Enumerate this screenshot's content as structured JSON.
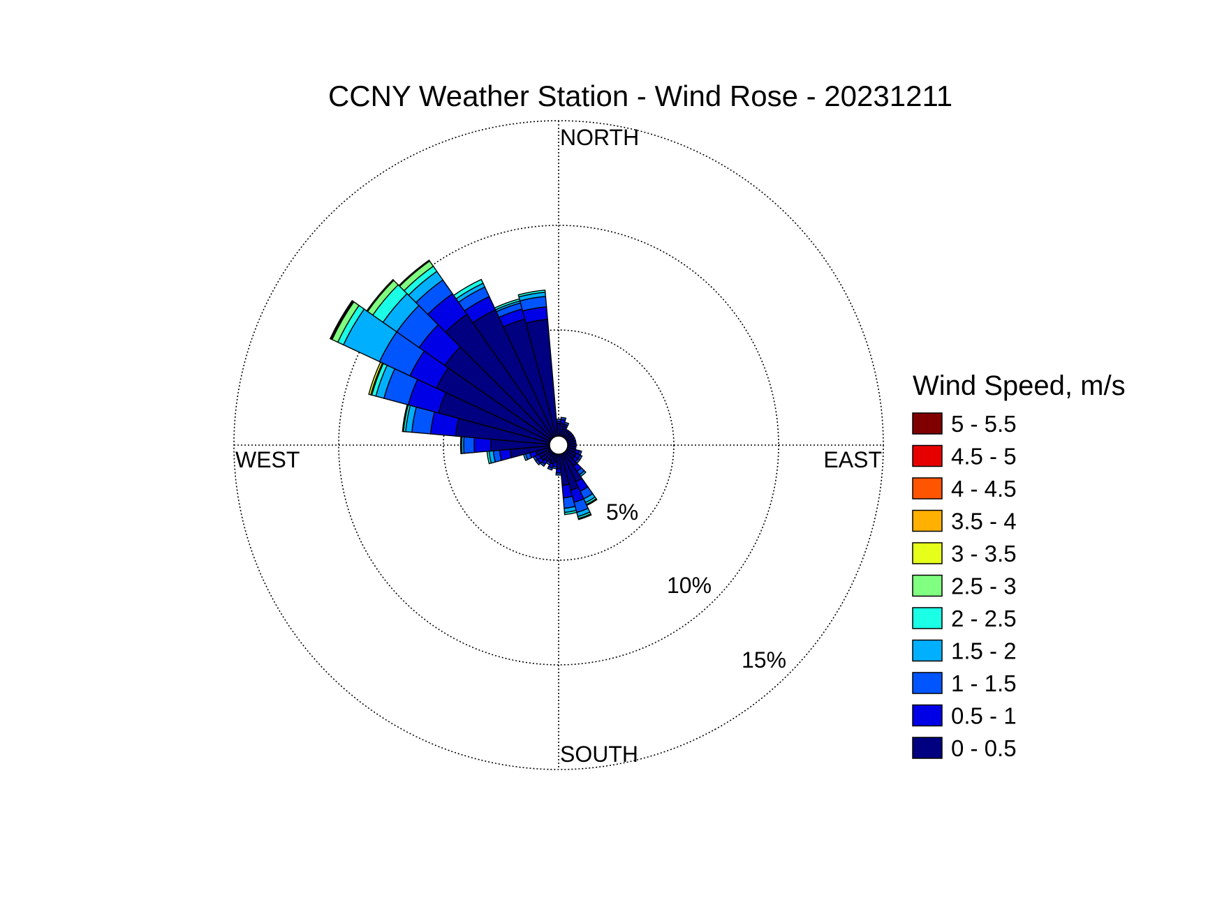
{
  "chart_data": {
    "type": "wind-rose",
    "title": "CCNY Weather Station - Wind Rose - 20231211",
    "compass": {
      "north": "NORTH",
      "east": "EAST",
      "south": "SOUTH",
      "west": "WEST"
    },
    "radial_axis": {
      "unit": "%",
      "max": 15.5,
      "ticks": [
        5,
        10,
        15
      ],
      "tick_labels": [
        "5%",
        "10%",
        "15%"
      ]
    },
    "grid": true,
    "direction_bin_width_deg": 10,
    "legend": {
      "title": "Wind Speed, m/s",
      "placement": "right",
      "entries": [
        {
          "label": "5 - 5.5",
          "color": "#800000"
        },
        {
          "label": "4.5 - 5",
          "color": "#e60000"
        },
        {
          "label": "4 - 4.5",
          "color": "#ff5500"
        },
        {
          "label": "3.5 - 4",
          "color": "#ffb000"
        },
        {
          "label": "3 - 3.5",
          "color": "#e6ff1a"
        },
        {
          "label": "2.5 - 3",
          "color": "#80ff80"
        },
        {
          "label": "2 - 2.5",
          "color": "#1affe6"
        },
        {
          "label": "1.5 - 2",
          "color": "#00b0ff"
        },
        {
          "label": "1 - 1.5",
          "color": "#0055ff"
        },
        {
          "label": "0.5 - 1",
          "color": "#0000e6"
        },
        {
          "label": "0 - 0.5",
          "color": "#000080"
        }
      ]
    },
    "bins_order": [
      "0 - 0.5",
      "0.5 - 1",
      "1 - 1.5",
      "1.5 - 2",
      "2 - 2.5",
      "2.5 - 3",
      "3 - 3.5",
      "3.5 - 4",
      "4 - 4.5",
      "4.5 - 5",
      "5 - 5.5"
    ],
    "sectors": [
      {
        "direction": 0,
        "values": [
          0.6,
          0.1,
          0.1,
          0,
          0,
          0,
          0,
          0,
          0,
          0,
          0
        ]
      },
      {
        "direction": 10,
        "values": [
          0.6,
          0.2,
          0.1,
          0,
          0,
          0,
          0,
          0,
          0,
          0,
          0
        ]
      },
      {
        "direction": 20,
        "values": [
          0.5,
          0.1,
          0.1,
          0,
          0,
          0,
          0,
          0,
          0,
          0,
          0
        ]
      },
      {
        "direction": 30,
        "values": [
          0.3,
          0.1,
          0,
          0,
          0,
          0,
          0,
          0,
          0,
          0,
          0
        ]
      },
      {
        "direction": 40,
        "values": [
          0.3,
          0.1,
          0,
          0,
          0,
          0,
          0,
          0,
          0,
          0,
          0
        ]
      },
      {
        "direction": 50,
        "values": [
          0.3,
          0.1,
          0,
          0,
          0,
          0,
          0,
          0,
          0,
          0,
          0
        ]
      },
      {
        "direction": 60,
        "values": [
          0.3,
          0.1,
          0,
          0,
          0,
          0,
          0,
          0,
          0,
          0,
          0
        ]
      },
      {
        "direction": 70,
        "values": [
          0.3,
          0.1,
          0,
          0,
          0,
          0,
          0,
          0,
          0,
          0,
          0
        ]
      },
      {
        "direction": 80,
        "values": [
          0.3,
          0.1,
          0,
          0,
          0,
          0,
          0,
          0,
          0,
          0,
          0
        ]
      },
      {
        "direction": 90,
        "values": [
          0.3,
          0.1,
          0,
          0,
          0,
          0,
          0,
          0,
          0,
          0,
          0
        ]
      },
      {
        "direction": 100,
        "values": [
          0.3,
          0.1,
          0,
          0,
          0,
          0,
          0,
          0,
          0,
          0,
          0
        ]
      },
      {
        "direction": 110,
        "values": [
          0.4,
          0.2,
          0.1,
          0,
          0,
          0,
          0,
          0,
          0,
          0,
          0
        ]
      },
      {
        "direction": 120,
        "values": [
          0.5,
          0.2,
          0.1,
          0,
          0,
          0,
          0,
          0,
          0,
          0,
          0
        ]
      },
      {
        "direction": 130,
        "values": [
          0.5,
          0.2,
          0.1,
          0,
          0,
          0,
          0,
          0,
          0,
          0,
          0
        ]
      },
      {
        "direction": 140,
        "values": [
          0.8,
          0.3,
          0.2,
          0.1,
          0,
          0,
          0,
          0,
          0,
          0,
          0
        ]
      },
      {
        "direction": 150,
        "values": [
          1.5,
          0.5,
          0.4,
          0.2,
          0.1,
          0.05,
          0,
          0,
          0,
          0,
          0
        ]
      },
      {
        "direction": 160,
        "values": [
          1.8,
          0.6,
          0.5,
          0.2,
          0.1,
          0.05,
          0,
          0,
          0,
          0,
          0
        ]
      },
      {
        "direction": 170,
        "values": [
          1.5,
          0.6,
          0.5,
          0.2,
          0.1,
          0,
          0,
          0,
          0,
          0,
          0
        ]
      },
      {
        "direction": 180,
        "values": [
          0.7,
          0.2,
          0.1,
          0,
          0,
          0,
          0,
          0,
          0,
          0,
          0
        ]
      },
      {
        "direction": 190,
        "values": [
          0.4,
          0.2,
          0.1,
          0,
          0,
          0,
          0,
          0,
          0,
          0,
          0
        ]
      },
      {
        "direction": 200,
        "values": [
          0.5,
          0.2,
          0.1,
          0,
          0,
          0,
          0,
          0,
          0,
          0,
          0
        ]
      },
      {
        "direction": 210,
        "values": [
          0.4,
          0.1,
          0.1,
          0,
          0,
          0,
          0,
          0,
          0,
          0,
          0
        ]
      },
      {
        "direction": 220,
        "values": [
          0.5,
          0.2,
          0.1,
          0,
          0,
          0,
          0,
          0,
          0,
          0,
          0
        ]
      },
      {
        "direction": 230,
        "values": [
          0.6,
          0.2,
          0.1,
          0,
          0,
          0,
          0,
          0,
          0,
          0,
          0
        ]
      },
      {
        "direction": 240,
        "values": [
          0.6,
          0.2,
          0.1,
          0,
          0,
          0,
          0,
          0,
          0,
          0,
          0
        ]
      },
      {
        "direction": 250,
        "values": [
          0.7,
          0.3,
          0.2,
          0.1,
          0,
          0,
          0,
          0,
          0,
          0,
          0
        ]
      },
      {
        "direction": 260,
        "values": [
          1.9,
          0.5,
          0.3,
          0.2,
          0.1,
          0,
          0,
          0,
          0,
          0,
          0
        ]
      },
      {
        "direction": 270,
        "values": [
          2.8,
          0.8,
          0.5,
          0.1,
          0.05,
          0,
          0,
          0,
          0,
          0,
          0
        ]
      },
      {
        "direction": 280,
        "values": [
          4.5,
          1.2,
          0.9,
          0.3,
          0.1,
          0.05,
          0,
          0,
          0,
          0,
          0
        ]
      },
      {
        "direction": 290,
        "values": [
          5.5,
          1.5,
          1.2,
          0.4,
          0.2,
          0.05,
          0.1,
          0,
          0,
          0,
          0
        ]
      },
      {
        "direction": 300,
        "values": [
          6.0,
          1.4,
          1.6,
          1.9,
          0.3,
          0.3,
          0,
          0,
          0,
          0.05,
          0.05
        ]
      },
      {
        "direction": 310,
        "values": [
          6.2,
          1.5,
          1.3,
          0.8,
          0.6,
          0.3,
          0.05,
          0,
          0,
          0,
          0
        ]
      },
      {
        "direction": 320,
        "values": [
          7.2,
          1.2,
          0.8,
          0.5,
          0.3,
          0.3,
          0.05,
          0,
          0,
          0,
          0
        ]
      },
      {
        "direction": 330,
        "values": [
          6.7,
          0.7,
          0.5,
          0.2,
          0.2,
          0,
          0,
          0,
          0,
          0,
          0
        ]
      },
      {
        "direction": 340,
        "values": [
          5.8,
          0.5,
          0.3,
          0.1,
          0.1,
          0,
          0,
          0,
          0,
          0,
          0
        ]
      },
      {
        "direction": 350,
        "values": [
          5.6,
          0.6,
          0.5,
          0.2,
          0.1,
          0,
          0,
          0,
          0,
          0,
          0
        ]
      }
    ]
  }
}
